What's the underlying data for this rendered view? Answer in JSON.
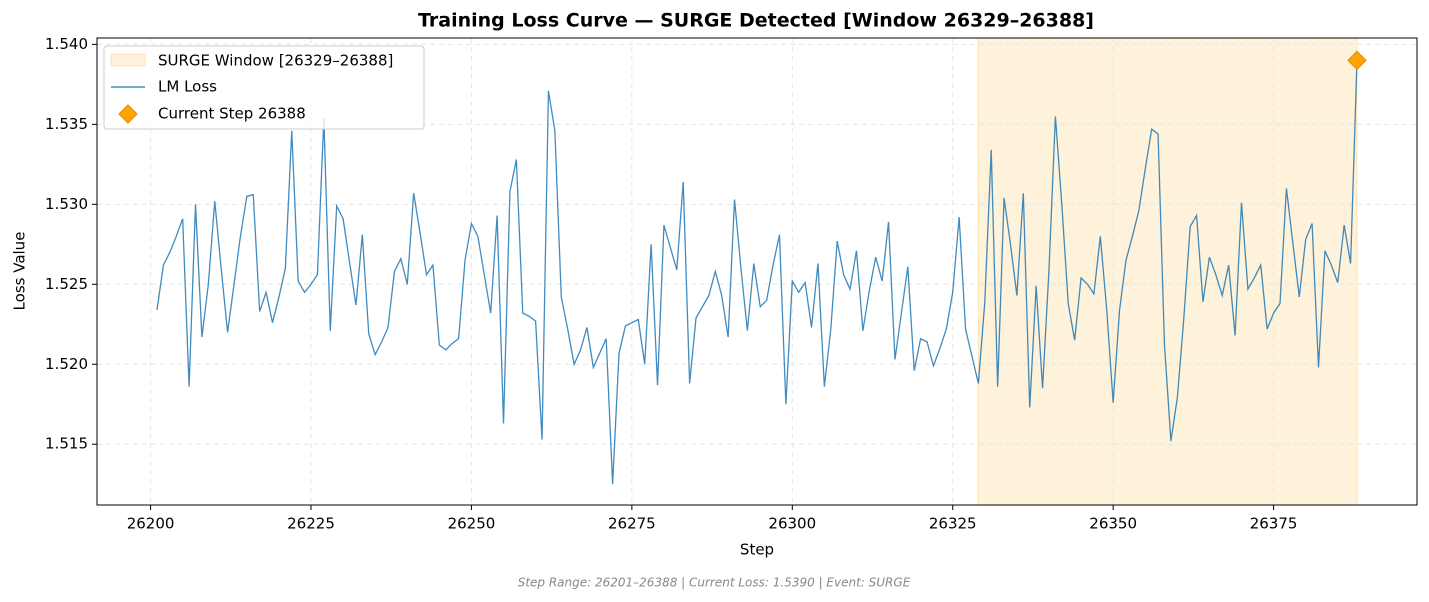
{
  "chart_data": {
    "type": "line",
    "title": "Training Loss Curve — SURGE Detected [Window 26329–26388]",
    "xlabel": "Step",
    "ylabel": "Loss Value",
    "footnote": "Step Range: 26201–26388 | Current Loss: 1.5390 | Event: SURGE",
    "x": [
      26201,
      26202,
      26203,
      26204,
      26205,
      26206,
      26207,
      26208,
      26209,
      26210,
      26211,
      26212,
      26213,
      26214,
      26215,
      26216,
      26217,
      26218,
      26219,
      26220,
      26221,
      26222,
      26223,
      26224,
      26225,
      26226,
      26227,
      26228,
      26229,
      26230,
      26231,
      26232,
      26233,
      26234,
      26235,
      26236,
      26237,
      26238,
      26239,
      26240,
      26241,
      26242,
      26243,
      26244,
      26245,
      26246,
      26247,
      26248,
      26249,
      26250,
      26251,
      26252,
      26253,
      26254,
      26255,
      26256,
      26257,
      26258,
      26259,
      26260,
      26261,
      26262,
      26263,
      26264,
      26265,
      26266,
      26267,
      26268,
      26269,
      26270,
      26271,
      26272,
      26273,
      26274,
      26275,
      26276,
      26277,
      26278,
      26279,
      26280,
      26281,
      26282,
      26283,
      26284,
      26285,
      26286,
      26287,
      26288,
      26289,
      26290,
      26291,
      26292,
      26293,
      26294,
      26295,
      26296,
      26297,
      26298,
      26299,
      26300,
      26301,
      26302,
      26303,
      26304,
      26305,
      26306,
      26307,
      26308,
      26309,
      26310,
      26311,
      26312,
      26313,
      26314,
      26315,
      26316,
      26317,
      26318,
      26319,
      26320,
      26321,
      26322,
      26323,
      26324,
      26325,
      26326,
      26327,
      26328,
      26329,
      26330,
      26331,
      26332,
      26333,
      26334,
      26335,
      26336,
      26337,
      26338,
      26339,
      26340,
      26341,
      26342,
      26343,
      26344,
      26345,
      26346,
      26347,
      26348,
      26349,
      26350,
      26351,
      26352,
      26353,
      26354,
      26355,
      26356,
      26357,
      26358,
      26359,
      26360,
      26361,
      26362,
      26363,
      26364,
      26365,
      26366,
      26367,
      26368,
      26369,
      26370,
      26371,
      26372,
      26373,
      26374,
      26375,
      26376,
      26377,
      26378,
      26379,
      26380,
      26381,
      26382,
      26383,
      26384,
      26385,
      26386,
      26387,
      26388
    ],
    "series": [
      {
        "name": "LM Loss",
        "color": "#1f77b4",
        "values": [
          1.5234,
          1.5262,
          1.527,
          1.528,
          1.5291,
          1.5186,
          1.53,
          1.5217,
          1.525,
          1.5302,
          1.526,
          1.522,
          1.525,
          1.528,
          1.5305,
          1.5306,
          1.5233,
          1.5245,
          1.5226,
          1.5242,
          1.526,
          1.5346,
          1.5252,
          1.5245,
          1.525,
          1.5256,
          1.5354,
          1.5221,
          1.5299,
          1.5291,
          1.5264,
          1.5237,
          1.5281,
          1.5219,
          1.5206,
          1.5214,
          1.5223,
          1.5258,
          1.5266,
          1.525,
          1.5307,
          1.5282,
          1.5256,
          1.5262,
          1.5212,
          1.5209,
          1.5213,
          1.5216,
          1.5265,
          1.5288,
          1.528,
          1.5256,
          1.5232,
          1.5293,
          1.5163,
          1.5308,
          1.5328,
          1.5232,
          1.523,
          1.5227,
          1.5153,
          1.5371,
          1.5346,
          1.5242,
          1.5222,
          1.52,
          1.5209,
          1.5223,
          1.5198,
          1.5207,
          1.5216,
          1.5125,
          1.5207,
          1.5224,
          1.5226,
          1.5228,
          1.52,
          1.5275,
          1.5187,
          1.5287,
          1.5273,
          1.5259,
          1.5314,
          1.5188,
          1.5229,
          1.5236,
          1.5243,
          1.5258,
          1.5243,
          1.5217,
          1.5303,
          1.526,
          1.5221,
          1.5263,
          1.5236,
          1.524,
          1.5262,
          1.5281,
          1.5175,
          1.5252,
          1.5245,
          1.5251,
          1.5223,
          1.5263,
          1.5186,
          1.5222,
          1.5277,
          1.5256,
          1.5247,
          1.5271,
          1.5221,
          1.5246,
          1.5267,
          1.5252,
          1.5289,
          1.5203,
          1.5232,
          1.5261,
          1.5196,
          1.5216,
          1.5214,
          1.5199,
          1.521,
          1.5222,
          1.5245,
          1.5292,
          1.5222,
          1.5205,
          1.5188,
          1.5239,
          1.5334,
          1.5186,
          1.5304,
          1.5275,
          1.5243,
          1.5307,
          1.5173,
          1.5249,
          1.5185,
          1.5259,
          1.5355,
          1.53,
          1.5238,
          1.5215,
          1.5254,
          1.525,
          1.5244,
          1.528,
          1.5234,
          1.5176,
          1.5234,
          1.5265,
          1.528,
          1.5296,
          1.5322,
          1.5347,
          1.5344,
          1.5212,
          1.5152,
          1.5179,
          1.5228,
          1.5286,
          1.5293,
          1.5239,
          1.5267,
          1.5256,
          1.5243,
          1.5262,
          1.5218,
          1.5301,
          1.5247,
          1.5254,
          1.5262,
          1.5222,
          1.5232,
          1.5238,
          1.531,
          1.5276,
          1.5242,
          1.5278,
          1.5288,
          1.5198,
          1.5271,
          1.5262,
          1.5251,
          1.5287,
          1.5263,
          1.539
        ]
      }
    ],
    "window": [
      26329,
      26388
    ],
    "window_label": "SURGE Window [26329–26388]",
    "window_color": "#ffa500",
    "current": {
      "x": 26388,
      "y": 1.539,
      "label": "Current Step 26388",
      "color": "#ffa500"
    },
    "xlim": [
      26191.65,
      26397.35
    ],
    "ylim": [
      1.5112,
      1.5404
    ],
    "xticks": [
      26200,
      26225,
      26250,
      26275,
      26300,
      26325,
      26350,
      26375
    ],
    "yticks": [
      1.515,
      {
        "value": 1.52,
        "label": "1.520"
      },
      1.525,
      {
        "value": 1.53,
        "label": "1.530"
      },
      1.535,
      {
        "value": 1.54,
        "label": "1.540"
      }
    ],
    "grid": true,
    "legend": "upper left"
  }
}
